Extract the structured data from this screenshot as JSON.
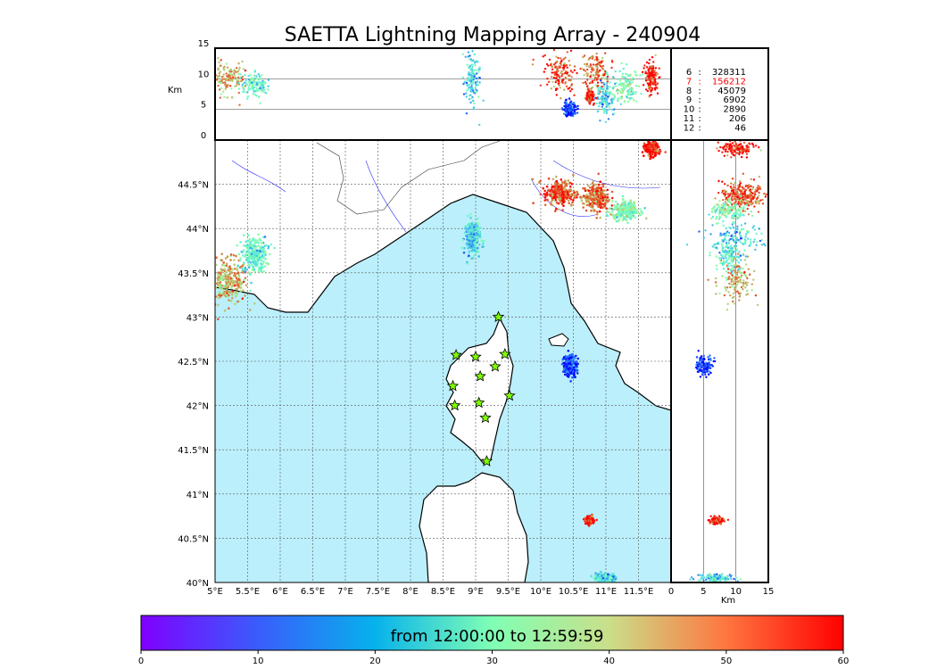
{
  "title": "SAETTA Lightning Mapping Array - 240904",
  "top_panel": {
    "ylabel": "Km",
    "y_ticks": [
      "15",
      "10",
      "5",
      "0"
    ]
  },
  "right_panel": {
    "xlabel": "Km",
    "x_ticks": [
      "0",
      "5",
      "10",
      "15"
    ]
  },
  "map": {
    "lon_ticks": [
      "5°E",
      "5.5°E",
      "6°E",
      "6.5°E",
      "7°E",
      "7.5°E",
      "8°E",
      "8.5°E",
      "9°E",
      "9.5°E",
      "10°E",
      "10.5°E",
      "11°E",
      "11.5°E"
    ],
    "lat_ticks": [
      "44.5°N",
      "44°N",
      "43.5°N",
      "43°N",
      "42.5°N",
      "42°N",
      "41.5°N",
      "41°N",
      "40.5°N",
      "40°N"
    ],
    "sea_color": "#bbeffb",
    "stations_icon": "star-icon",
    "station_color": "#7fff00"
  },
  "stats": [
    {
      "key": "6",
      "sep": ":",
      "value": "328311",
      "color": "#000000"
    },
    {
      "key": "7",
      "sep": ":",
      "value": "156212",
      "color": "#ff0000"
    },
    {
      "key": "8",
      "sep": ":",
      "value": "45079",
      "color": "#000000"
    },
    {
      "key": "9",
      "sep": ":",
      "value": "6902",
      "color": "#000000"
    },
    {
      "key": "10",
      "sep": ":",
      "value": "2890",
      "color": "#000000"
    },
    {
      "key": "11",
      "sep": ":",
      "value": "206",
      "color": "#000000"
    },
    {
      "key": "12",
      "sep": ":",
      "value": "46",
      "color": "#000000"
    }
  ],
  "colorbar": {
    "label": "from 12:00:00 to 12:59:59",
    "ticks": [
      "0",
      "10",
      "20",
      "30",
      "40",
      "50",
      "60"
    ],
    "colormap": "rainbow"
  },
  "chart_data": {
    "type": "scatter",
    "title": "SAETTA Lightning Mapping Array - 240904",
    "xlim": [
      5,
      12
    ],
    "ylim": [
      40,
      45
    ],
    "altitude_lim": [
      0,
      15
    ],
    "time_range_min": [
      0,
      60
    ],
    "stations": [
      {
        "lon": 9.35,
        "lat": 43.0
      },
      {
        "lon": 8.7,
        "lat": 42.57
      },
      {
        "lon": 9.0,
        "lat": 42.55
      },
      {
        "lon": 9.45,
        "lat": 42.58
      },
      {
        "lon": 9.3,
        "lat": 42.44
      },
      {
        "lon": 9.07,
        "lat": 42.33
      },
      {
        "lon": 8.65,
        "lat": 42.22
      },
      {
        "lon": 9.05,
        "lat": 42.03
      },
      {
        "lon": 8.68,
        "lat": 42.0
      },
      {
        "lon": 9.52,
        "lat": 42.11
      },
      {
        "lon": 9.15,
        "lat": 41.86
      },
      {
        "lon": 9.17,
        "lat": 41.37
      }
    ],
    "clusters": [
      {
        "lon": 5.2,
        "lat": 43.4,
        "spread_lon": 0.3,
        "spread_lat": 0.25,
        "alt": 10,
        "spread_alt": 3,
        "t": 45
      },
      {
        "lon": 5.6,
        "lat": 43.7,
        "spread_lon": 0.2,
        "spread_lat": 0.2,
        "alt": 9,
        "spread_alt": 2,
        "t": 25
      },
      {
        "lon": 8.95,
        "lat": 43.9,
        "spread_lon": 0.12,
        "spread_lat": 0.2,
        "alt": 10,
        "spread_alt": 4,
        "t": 18
      },
      {
        "lon": 10.3,
        "lat": 44.4,
        "spread_lon": 0.25,
        "spread_lat": 0.15,
        "alt": 11,
        "spread_alt": 3,
        "t": 55
      },
      {
        "lon": 10.85,
        "lat": 44.35,
        "spread_lon": 0.2,
        "spread_lat": 0.15,
        "alt": 11,
        "spread_alt": 3,
        "t": 52
      },
      {
        "lon": 11.3,
        "lat": 44.2,
        "spread_lon": 0.2,
        "spread_lat": 0.1,
        "alt": 9,
        "spread_alt": 3,
        "t": 30
      },
      {
        "lon": 11.7,
        "lat": 44.9,
        "spread_lon": 0.1,
        "spread_lat": 0.08,
        "alt": 10,
        "spread_alt": 3,
        "t": 58
      },
      {
        "lon": 10.45,
        "lat": 42.45,
        "spread_lon": 0.1,
        "spread_lat": 0.12,
        "alt": 5,
        "spread_alt": 1.5,
        "t": 4
      },
      {
        "lon": 11.0,
        "lat": 40.05,
        "spread_lon": 0.15,
        "spread_lat": 0.05,
        "alt": 7,
        "spread_alt": 3,
        "t": 20
      },
      {
        "lon": 10.75,
        "lat": 40.7,
        "spread_lon": 0.06,
        "spread_lat": 0.04,
        "alt": 7,
        "spread_alt": 1,
        "t": 58
      }
    ]
  }
}
